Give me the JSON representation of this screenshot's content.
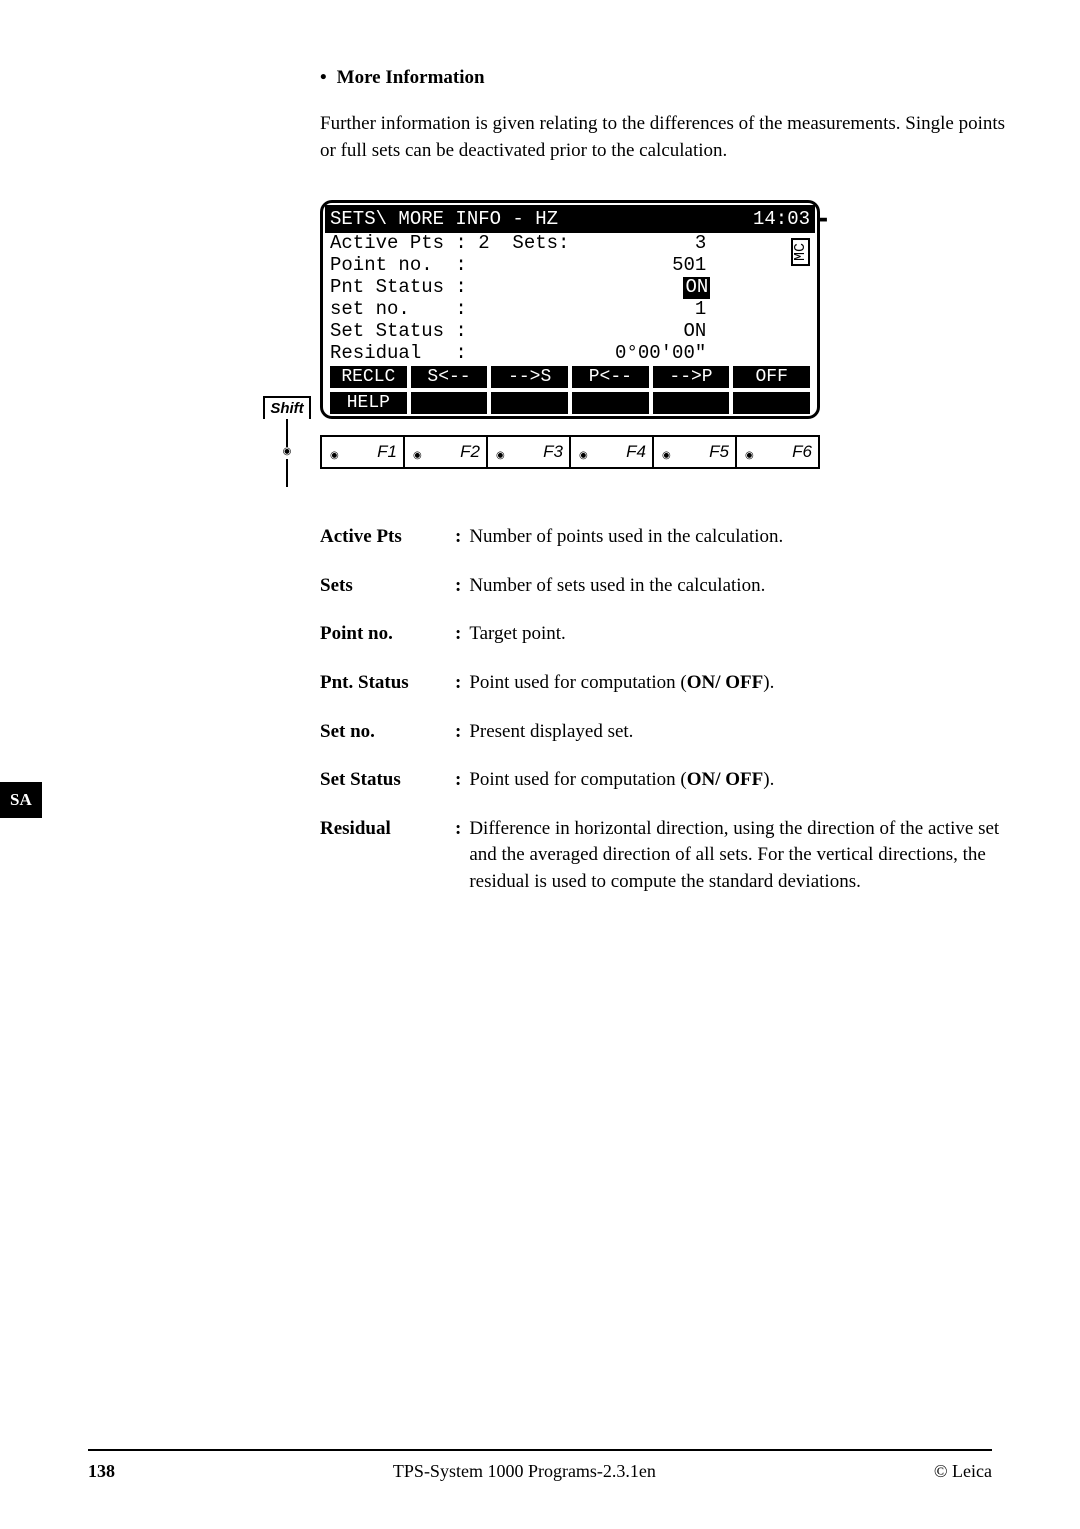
{
  "heading": "More Information",
  "intro": "Further information is given relating to the differences of the measurements. Single points or full sets can be deactivated prior to the calculation.",
  "shift_label": "Shift",
  "lcd": {
    "title_left": "SETS\\ MORE INFO - HZ",
    "title_right": "14:03",
    "mc_badge": "MC",
    "rows": [
      {
        "label": "Active Pts",
        "sep": ":",
        "mid": " 2  Sets:",
        "val": "3",
        "hl": false
      },
      {
        "label": "Point no.",
        "sep": ":",
        "mid": "",
        "val": "501",
        "hl": false
      },
      {
        "label": "Pnt Status",
        "sep": ":",
        "mid": "",
        "val": "ON",
        "hl": true
      },
      {
        "label": "set no.",
        "sep": ":",
        "mid": "",
        "val": "1",
        "hl": false
      },
      {
        "label": "Set Status",
        "sep": ":",
        "mid": "",
        "val": "ON",
        "hl": false
      },
      {
        "label": "Residual",
        "sep": ":",
        "mid": "",
        "val": "0°00'00\"",
        "hl": false
      }
    ],
    "softkeys1": [
      "RECLC",
      "S<--",
      "-->S",
      "P<--",
      "-->P",
      "OFF"
    ],
    "softkeys2": [
      "HELP",
      "",
      "",
      "",
      "",
      ""
    ],
    "fkeys": [
      "F1",
      "F2",
      "F3",
      "F4",
      "F5",
      "F6"
    ]
  },
  "definitions": [
    {
      "term": "Active Pts",
      "desc": "Number of points used in the calculation."
    },
    {
      "term": "Sets",
      "desc": "Number of sets used in the calculation."
    },
    {
      "term": "Point no.",
      "desc": "Target point."
    },
    {
      "term": "Pnt. Status",
      "desc": "Point used for computation (",
      "bold_tail": "ON/ OFF",
      "tail": ")."
    },
    {
      "term": "Set no.",
      "desc": "Present displayed set."
    },
    {
      "term": "Set Status",
      "desc": "Point used for computation (",
      "bold_tail": "ON/ OFF",
      "tail": ")."
    },
    {
      "term": "Residual",
      "desc": "Difference in horizontal direction, using the direction of the active set and the averaged direction of all sets. For the vertical directions, the residual is used to compute the standard deviations."
    }
  ],
  "sa_tab": "SA",
  "footer": {
    "page": "138",
    "center": "TPS-System 1000 Programs-2.3.1en",
    "right": "© Leica"
  }
}
